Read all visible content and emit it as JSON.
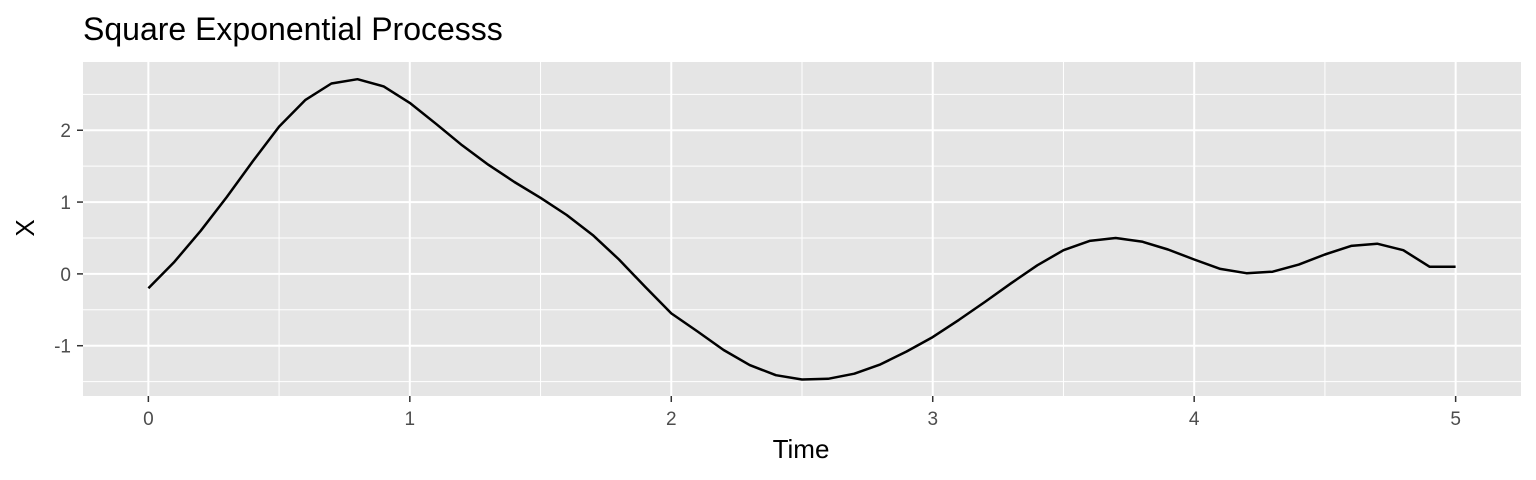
{
  "chart_data": {
    "type": "line",
    "title": "Square Exponential Processs",
    "xlabel": "Time",
    "ylabel": "X",
    "xlim": [
      -0.25,
      5.25
    ],
    "ylim": [
      -1.7,
      2.95
    ],
    "x_ticks": [
      0,
      1,
      2,
      3,
      4,
      5
    ],
    "x_tick_labels": [
      "0",
      "1",
      "2",
      "3",
      "4",
      "5"
    ],
    "y_ticks": [
      -1,
      0,
      1,
      2
    ],
    "y_tick_labels": [
      "-1",
      "0",
      "1",
      "2"
    ],
    "grid": true,
    "legend": "none",
    "colors": {
      "panel": "#e5e5e5",
      "grid": "#ffffff",
      "line": "#000000",
      "tick": "#333333"
    },
    "series": [
      {
        "x": [
          0,
          0.1,
          0.2,
          0.3,
          0.4,
          0.5,
          0.6,
          0.7,
          0.8,
          0.9,
          1.0,
          1.1,
          1.2,
          1.3,
          1.4,
          1.5,
          1.6,
          1.7,
          1.8,
          1.9,
          2.0,
          2.1,
          2.2,
          2.3,
          2.4,
          2.5,
          2.6,
          2.7,
          2.8,
          2.9,
          3.0,
          3.1,
          3.2,
          3.3,
          3.4,
          3.5,
          3.6,
          3.7,
          3.8,
          3.9,
          4.0,
          4.1,
          4.2,
          4.3,
          4.4,
          4.5,
          4.6,
          4.7,
          4.8,
          4.9,
          5.0
        ],
        "values": [
          -0.2,
          0.17,
          0.6,
          1.07,
          1.57,
          2.05,
          2.42,
          2.65,
          2.71,
          2.61,
          2.38,
          2.09,
          1.79,
          1.52,
          1.28,
          1.06,
          0.82,
          0.54,
          0.2,
          -0.18,
          -0.55,
          -0.8,
          -1.06,
          -1.27,
          -1.41,
          -1.47,
          -1.46,
          -1.39,
          -1.26,
          -1.08,
          -0.88,
          -0.64,
          -0.39,
          -0.13,
          0.12,
          0.33,
          0.46,
          0.5,
          0.45,
          0.34,
          0.2,
          0.07,
          0.01,
          0.03,
          0.13,
          0.27,
          0.39,
          0.42,
          0.33,
          0.1,
          0.1
        ]
      }
    ]
  }
}
